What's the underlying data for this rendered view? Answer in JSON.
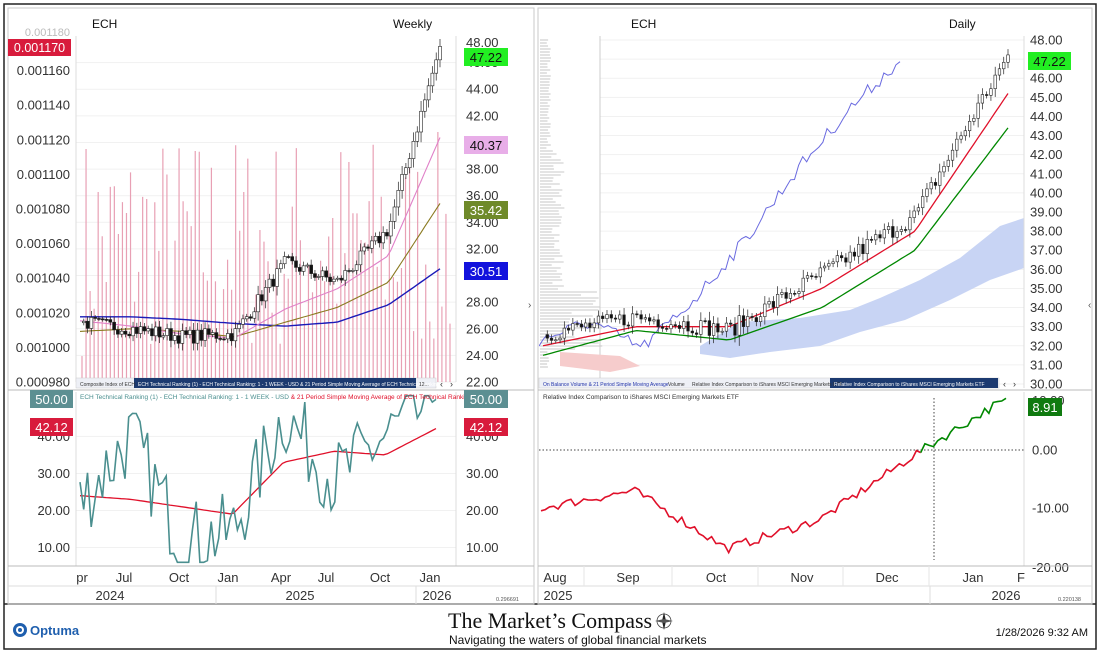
{
  "colors": {
    "bullish": "#008800",
    "bearish": "#e0102a",
    "sma_pink": "#e080c8",
    "sma_olive": "#8a7a20",
    "sma_blue": "#1a1ab8",
    "composite_bars": "#e8a0b4",
    "teal": "#4a8f8f",
    "obv": "#6a6ae0",
    "cloud_blue": "#c8d4f4",
    "cloud_red": "#f6cccc"
  },
  "left_panel": {
    "symbol": "ECH",
    "timeframe": "Weekly",
    "tick_stub_left": "0.001180",
    "tick_stub_right": "48.00",
    "y_left_ticks": [
      "0.001160",
      "0.001140",
      "0.001120",
      "0.001100",
      "0.001080",
      "0.001060",
      "0.001040",
      "0.001020",
      "0.001000",
      "0.000980"
    ],
    "y_right_ticks": [
      "48.00",
      "46.00",
      "44.00",
      "42.00",
      "40.00",
      "38.00",
      "36.00",
      "34.00",
      "32.00",
      "30.00",
      "28.00",
      "26.00",
      "24.00",
      "22.00"
    ],
    "badges": {
      "composite": "0.001170",
      "price": "47.22",
      "sma_pink": "40.37",
      "sma_olive": "35.42",
      "sma_blue": "30.51"
    },
    "legend_tabs": [
      "Composite Index of ECH",
      "ECH Technical Ranking (1) - ECH Technical Ranking: 1 - 1 WEEK - USD & 21 Period Simple Moving Average of ECH Technical Ranking 1",
      "12..."
    ],
    "lower_legend": [
      "ECH Technical Ranking (1) - ECH Technical Ranking: 1 - 1 WEEK - USD",
      " & 21 Period Simple Moving Average of ECH Technical Ranking: 1"
    ],
    "lower_y_ticks": [
      "40.00",
      "30.00",
      "20.00",
      "10.00"
    ],
    "lower_badges": {
      "ranking": "50.00",
      "sma": "42.12"
    },
    "x_months": [
      "pr",
      "Jul",
      "Oct",
      "Jan",
      "Apr",
      "Jul",
      "Oct",
      "Jan"
    ],
    "x_years": [
      "2024",
      "2025",
      "2026"
    ],
    "scale_note": "0.296691"
  },
  "right_panel": {
    "symbol": "ECH",
    "timeframe": "Daily",
    "y_right_ticks": [
      "48.00",
      "47.00",
      "46.00",
      "45.00",
      "44.00",
      "43.00",
      "42.00",
      "41.00",
      "40.00",
      "39.00",
      "38.00",
      "37.00",
      "36.00",
      "35.00",
      "34.00",
      "33.00",
      "32.00",
      "31.00",
      "30.00"
    ],
    "price_badge": "47.22",
    "legend_tabs": [
      "On Balance Volume & 21 Period Simple Moving Average",
      "Volume",
      "Relative Index Comparison to iShares MSCI Emerging Markets ETF",
      "Relative Index Comparison to iShares MSCI Emerging Markets ETF"
    ],
    "lower_legend": "Relative Index Comparison to iShares MSCI Emerging Markets ETF",
    "lower_y_ticks": [
      "0.00",
      "-10.00"
    ],
    "lower_badge": "8.91",
    "lower_cut_ticks": [
      "10.00",
      "-20.00"
    ],
    "x_months": [
      "Aug",
      "Sep",
      "Oct",
      "Nov",
      "Dec",
      "Jan",
      "F"
    ],
    "x_years": [
      "2025",
      "2026"
    ],
    "scale_note": "0.220138"
  },
  "footer": {
    "brand": "Optuma",
    "title": "The Market’s Compass",
    "subtitle": "Navigating the waters of global financial markets",
    "timestamp": "1/28/2026 9:32 AM"
  },
  "chart_data": [
    {
      "type": "line",
      "title": "",
      "symbol": "ECH",
      "timeframe": "Weekly",
      "xlabel": "",
      "ylabel": "",
      "ylim": [
        22,
        48
      ],
      "x": [
        "2024-04",
        "2024-07",
        "2024-10",
        "2025-01",
        "2025-04",
        "2025-07",
        "2025-10",
        "2026-01"
      ],
      "series": [
        {
          "name": "",
          "values": [
            26.5,
            26.0,
            25.4,
            25.6,
            31.0,
            29.5,
            33.5,
            47.22
          ]
        },
        {
          "name": "",
          "values": [
            26.6,
            26.2,
            25.6,
            25.3,
            27.5,
            29.0,
            31.5,
            40.37
          ]
        },
        {
          "name": "",
          "values": [
            25.8,
            26.0,
            25.8,
            25.4,
            26.5,
            27.6,
            29.5,
            35.42
          ]
        },
        {
          "name": "",
          "values": [
            26.9,
            26.9,
            26.7,
            26.4,
            26.2,
            26.5,
            27.8,
            30.51
          ]
        }
      ],
      "composite_axis": [
        0.00098,
        0.00118
      ],
      "composite_last": 0.00117
    },
    {
      "type": "line",
      "title": "ECH Technical Ranking (1) - ECH Technical Ranking: 1 - 1 WEEK - USD & 21 Period Simple Moving Average of ECH Technical Ranking: 1",
      "xlabel": "",
      "ylabel": "",
      "ylim": [
        5,
        52
      ],
      "x": [
        "2024-04",
        "2024-07",
        "2024-10",
        "2025-01",
        "2025-04",
        "2025-07",
        "2025-10",
        "2026-01"
      ],
      "series": [
        {
          "name": "ECH Technical Ranking (1)",
          "values": [
            22,
            40,
            12,
            14,
            46,
            28,
            40,
            50.0
          ]
        },
        {
          "name": "21 Period Simple Moving Average of ECH Technical Ranking: 1",
          "values": [
            24,
            23,
            21,
            19,
            33,
            36,
            35,
            42.12
          ]
        }
      ]
    },
    {
      "type": "line",
      "title": "",
      "symbol": "ECH",
      "timeframe": "Daily",
      "xlabel": "",
      "ylabel": "",
      "ylim": [
        30,
        48
      ],
      "x": [
        "2025-08",
        "2025-09",
        "2025-10",
        "2025-11",
        "2025-12",
        "2026-01"
      ],
      "series": [
        {
          "name": "",
          "values": [
            32.6,
            33.5,
            32.8,
            35.8,
            38.8,
            47.22
          ]
        },
        {
          "name": "",
          "values": [
            32.0,
            33.0,
            33.0,
            35.0,
            38.0,
            45.2
          ]
        },
        {
          "name": "",
          "values": [
            31.5,
            32.8,
            32.3,
            34.0,
            37.0,
            43.4
          ]
        }
      ]
    },
    {
      "type": "line",
      "title": "Relative Index Comparison to iShares MSCI Emerging Markets ETF",
      "xlabel": "",
      "ylabel": "",
      "ylim": [
        -20,
        10
      ],
      "x": [
        "2025-08",
        "2025-09",
        "2025-10",
        "2025-11",
        "2025-12",
        "2026-01"
      ],
      "series": [
        {
          "name": "Relative Index Comparison to iShares MSCI Emerging Markets ETF",
          "values": [
            -10,
            -7,
            -17,
            -12,
            -1,
            8.91
          ]
        }
      ]
    }
  ]
}
